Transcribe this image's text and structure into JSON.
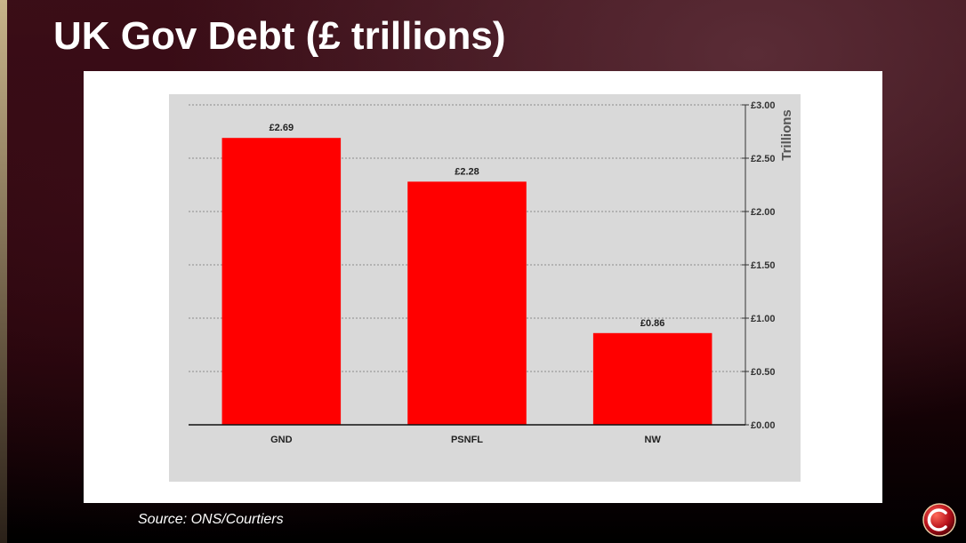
{
  "title": "UK Gov Debt (£ trillions)",
  "source": "Source: ONS/Courtiers",
  "chart_data": {
    "type": "bar",
    "categories": [
      "GND",
      "PSNFL",
      "NW"
    ],
    "values": [
      2.69,
      2.28,
      0.86
    ],
    "data_labels": [
      "£2.69",
      "£2.28",
      "£0.86"
    ],
    "ylabel": "Trillions",
    "ylim": [
      0,
      3
    ],
    "yticks": [
      0,
      0.5,
      1,
      1.5,
      2,
      2.5,
      3
    ],
    "ytick_labels": [
      "£0.00",
      "£0.50",
      "£1.00",
      "£1.50",
      "£2.00",
      "£2.50",
      "£3.00"
    ],
    "axis_side": "right",
    "grid": true,
    "bar_color": "#ff0000",
    "plot_background": "#d9d9d9"
  }
}
